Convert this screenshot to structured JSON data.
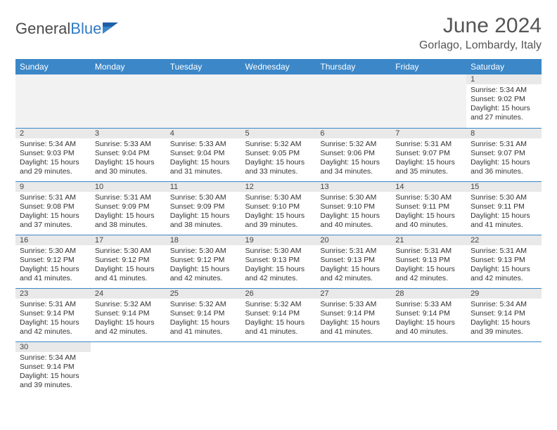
{
  "brand": {
    "general": "General",
    "blue": "Blue"
  },
  "title": "June 2024",
  "location": "Gorlago, Lombardy, Italy",
  "colors": {
    "header_bg": "#3b87c8",
    "header_text": "#ffffff",
    "daynum_bg": "#e9e9e9",
    "border": "#3b87c8",
    "brand_blue": "#2f7bc4",
    "text": "#333333"
  },
  "weekdays": [
    "Sunday",
    "Monday",
    "Tuesday",
    "Wednesday",
    "Thursday",
    "Friday",
    "Saturday"
  ],
  "first_weekday_index": 6,
  "days": [
    {
      "n": 1,
      "sunrise": "5:34 AM",
      "sunset": "9:02 PM",
      "daylight": "15 hours and 27 minutes."
    },
    {
      "n": 2,
      "sunrise": "5:34 AM",
      "sunset": "9:03 PM",
      "daylight": "15 hours and 29 minutes."
    },
    {
      "n": 3,
      "sunrise": "5:33 AM",
      "sunset": "9:04 PM",
      "daylight": "15 hours and 30 minutes."
    },
    {
      "n": 4,
      "sunrise": "5:33 AM",
      "sunset": "9:04 PM",
      "daylight": "15 hours and 31 minutes."
    },
    {
      "n": 5,
      "sunrise": "5:32 AM",
      "sunset": "9:05 PM",
      "daylight": "15 hours and 33 minutes."
    },
    {
      "n": 6,
      "sunrise": "5:32 AM",
      "sunset": "9:06 PM",
      "daylight": "15 hours and 34 minutes."
    },
    {
      "n": 7,
      "sunrise": "5:31 AM",
      "sunset": "9:07 PM",
      "daylight": "15 hours and 35 minutes."
    },
    {
      "n": 8,
      "sunrise": "5:31 AM",
      "sunset": "9:07 PM",
      "daylight": "15 hours and 36 minutes."
    },
    {
      "n": 9,
      "sunrise": "5:31 AM",
      "sunset": "9:08 PM",
      "daylight": "15 hours and 37 minutes."
    },
    {
      "n": 10,
      "sunrise": "5:31 AM",
      "sunset": "9:09 PM",
      "daylight": "15 hours and 38 minutes."
    },
    {
      "n": 11,
      "sunrise": "5:30 AM",
      "sunset": "9:09 PM",
      "daylight": "15 hours and 38 minutes."
    },
    {
      "n": 12,
      "sunrise": "5:30 AM",
      "sunset": "9:10 PM",
      "daylight": "15 hours and 39 minutes."
    },
    {
      "n": 13,
      "sunrise": "5:30 AM",
      "sunset": "9:10 PM",
      "daylight": "15 hours and 40 minutes."
    },
    {
      "n": 14,
      "sunrise": "5:30 AM",
      "sunset": "9:11 PM",
      "daylight": "15 hours and 40 minutes."
    },
    {
      "n": 15,
      "sunrise": "5:30 AM",
      "sunset": "9:11 PM",
      "daylight": "15 hours and 41 minutes."
    },
    {
      "n": 16,
      "sunrise": "5:30 AM",
      "sunset": "9:12 PM",
      "daylight": "15 hours and 41 minutes."
    },
    {
      "n": 17,
      "sunrise": "5:30 AM",
      "sunset": "9:12 PM",
      "daylight": "15 hours and 41 minutes."
    },
    {
      "n": 18,
      "sunrise": "5:30 AM",
      "sunset": "9:12 PM",
      "daylight": "15 hours and 42 minutes."
    },
    {
      "n": 19,
      "sunrise": "5:30 AM",
      "sunset": "9:13 PM",
      "daylight": "15 hours and 42 minutes."
    },
    {
      "n": 20,
      "sunrise": "5:31 AM",
      "sunset": "9:13 PM",
      "daylight": "15 hours and 42 minutes."
    },
    {
      "n": 21,
      "sunrise": "5:31 AM",
      "sunset": "9:13 PM",
      "daylight": "15 hours and 42 minutes."
    },
    {
      "n": 22,
      "sunrise": "5:31 AM",
      "sunset": "9:13 PM",
      "daylight": "15 hours and 42 minutes."
    },
    {
      "n": 23,
      "sunrise": "5:31 AM",
      "sunset": "9:14 PM",
      "daylight": "15 hours and 42 minutes."
    },
    {
      "n": 24,
      "sunrise": "5:32 AM",
      "sunset": "9:14 PM",
      "daylight": "15 hours and 42 minutes."
    },
    {
      "n": 25,
      "sunrise": "5:32 AM",
      "sunset": "9:14 PM",
      "daylight": "15 hours and 41 minutes."
    },
    {
      "n": 26,
      "sunrise": "5:32 AM",
      "sunset": "9:14 PM",
      "daylight": "15 hours and 41 minutes."
    },
    {
      "n": 27,
      "sunrise": "5:33 AM",
      "sunset": "9:14 PM",
      "daylight": "15 hours and 41 minutes."
    },
    {
      "n": 28,
      "sunrise": "5:33 AM",
      "sunset": "9:14 PM",
      "daylight": "15 hours and 40 minutes."
    },
    {
      "n": 29,
      "sunrise": "5:34 AM",
      "sunset": "9:14 PM",
      "daylight": "15 hours and 39 minutes."
    },
    {
      "n": 30,
      "sunrise": "5:34 AM",
      "sunset": "9:14 PM",
      "daylight": "15 hours and 39 minutes."
    }
  ],
  "labels": {
    "sunrise": "Sunrise:",
    "sunset": "Sunset:",
    "daylight": "Daylight:"
  }
}
